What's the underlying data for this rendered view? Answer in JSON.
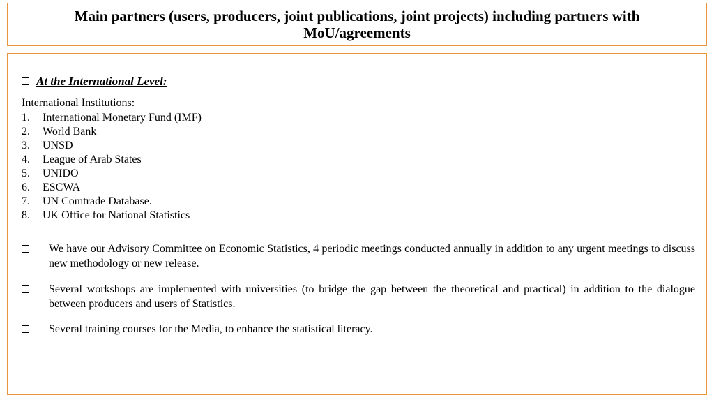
{
  "title": "Main partners (users, producers, joint publications, joint projects) including partners with MoU/agreements",
  "section_heading": "At the International Level:",
  "subtitle": "International Institutions:",
  "institutions": [
    "International Monetary Fund (IMF)",
    "World Bank",
    "UNSD",
    "League of Arab States",
    "UNIDO",
    "ESCWA",
    "UN Comtrade Database.",
    "UK Office for National Statistics"
  ],
  "bullets": [
    "We have our Advisory Committee on Economic Statistics, 4 periodic meetings conducted annually in addition to any urgent meetings to discuss new methodology or new release.",
    "Several workshops are implemented with universities (to bridge the gap between the theoretical and practical) in addition to the dialogue between producers and users of Statistics.",
    "Several training courses for the Media, to enhance the statistical literacy."
  ],
  "colors": {
    "border": "#e8963d",
    "text": "#000000",
    "background": "#ffffff"
  }
}
